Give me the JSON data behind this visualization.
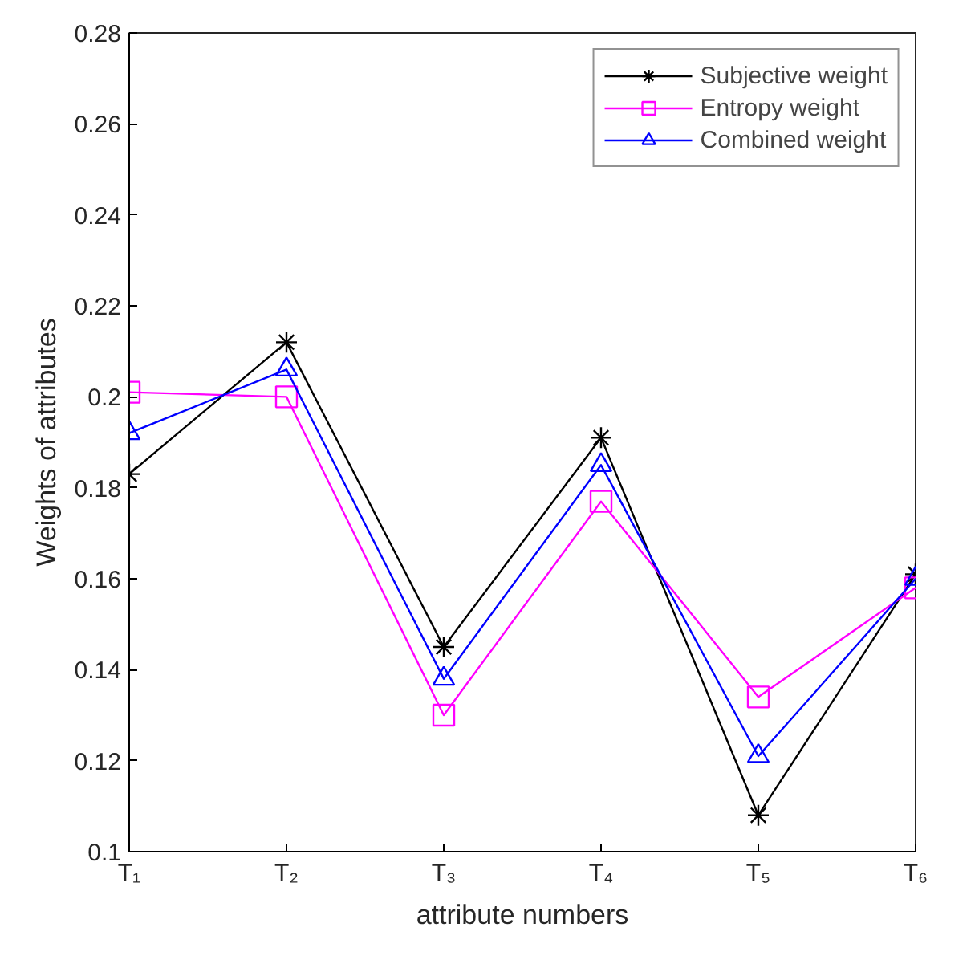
{
  "chart_data": {
    "type": "line",
    "xlabel": "attribute numbers",
    "ylabel": "Weights of attributes",
    "categories": [
      "T₁",
      "T₂",
      "T₃",
      "T₄",
      "T₅",
      "T₆"
    ],
    "ylim": [
      0.1,
      0.28
    ],
    "yticks": [
      0.1,
      0.12,
      0.14,
      0.16,
      0.18,
      0.2,
      0.22,
      0.24,
      0.26,
      0.28
    ],
    "grid": false,
    "legend": "top right",
    "line_style": "solid",
    "series": [
      {
        "name": "Subjective weight",
        "color": "#000000",
        "marker": "cross",
        "values": [
          0.183,
          0.212,
          0.145,
          0.191,
          0.108,
          0.161
        ]
      },
      {
        "name": "Entropy weight",
        "color": "#ff00ff",
        "marker": "square",
        "values": [
          0.201,
          0.2,
          0.13,
          0.177,
          0.134,
          0.158
        ]
      },
      {
        "name": "Combined weight",
        "color": "#0000ff",
        "marker": "triangle",
        "values": [
          0.192,
          0.206,
          0.138,
          0.185,
          0.121,
          0.16
        ]
      }
    ]
  }
}
